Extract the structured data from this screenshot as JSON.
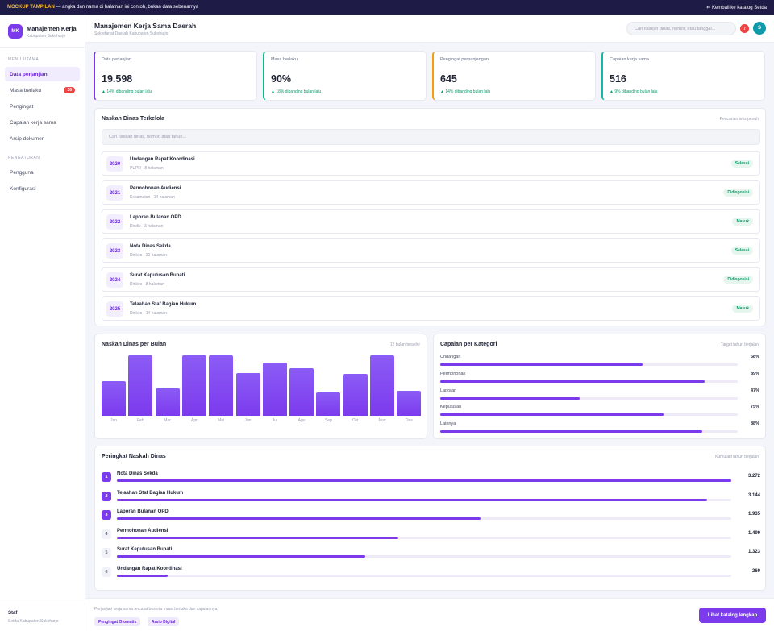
{
  "topbar": {
    "mock_label": "MOCKUP TAMPILAN",
    "note": " — angka dan nama di halaman ini contoh, bukan data sebenarnya",
    "back_link": "⇐ Kembali ke katalog Setda"
  },
  "brand": {
    "logo": "MK",
    "title": "Manajemen Kerja",
    "subtitle": "Kabupaten Sukoharjo"
  },
  "sidebar": {
    "sec_main": "MENU UTAMA",
    "items": [
      {
        "label": "Data perjanjian"
      },
      {
        "label": "Masa berlaku",
        "badge": "36"
      },
      {
        "label": "Pengingat"
      },
      {
        "label": "Capaian kerja sama"
      },
      {
        "label": "Arsip dokumen"
      }
    ],
    "sec_settings": "PENGATURAN",
    "settings": [
      {
        "label": "Pengguna"
      },
      {
        "label": "Konfigurasi"
      }
    ],
    "user_name": "Staf",
    "user_role": "Setda Kabupaten Sukoharjo"
  },
  "header": {
    "title": "Manajemen Kerja Sama Daerah",
    "subtitle": "Sekretariat Daerah Kabupaten Sukoharjo",
    "search_placeholder": "Cari naskah dinas, nomor, atau tanggal...",
    "notif_count": "7",
    "avatar": "S"
  },
  "stats": [
    {
      "label": "Data perjanjian",
      "value": "19.598",
      "change": "▲ 14% dibanding bulan lalu",
      "accent": "#7c3aed"
    },
    {
      "label": "Masa berlaku",
      "value": "90%",
      "change": "▲ 18% dibanding bulan lalu",
      "accent": "#10b981"
    },
    {
      "label": "Pengingat perpanjangan",
      "value": "645",
      "change": "▲ 14% dibanding bulan lalu",
      "accent": "#f59e0b"
    },
    {
      "label": "Capaian kerja sama",
      "value": "516",
      "change": "▲ 9% dibanding bulan lalu",
      "accent": "#14b8a6"
    }
  ],
  "documents": {
    "title": "Naskah Dinas Terkelola",
    "hint": "Pencarian teks penuh",
    "search_placeholder": "Cari naskah dinas, nomor, atau tahun...",
    "rows": [
      {
        "year": "2020",
        "title": "Undangan Rapat Koordinasi",
        "meta": "PUPR · 8 halaman",
        "status": "Selesai"
      },
      {
        "year": "2021",
        "title": "Permohonan Audiensi",
        "meta": "Kecamatan · 14 halaman",
        "status": "Didisposisi"
      },
      {
        "year": "2022",
        "title": "Laporan Bulanan OPD",
        "meta": "Disdik · 3 halaman",
        "status": "Masuk"
      },
      {
        "year": "2023",
        "title": "Nota Dinas Sekda",
        "meta": "Dinkes · 32 halaman",
        "status": "Selesai"
      },
      {
        "year": "2024",
        "title": "Surat Keputusan Bupati",
        "meta": "Dinkes · 8 halaman",
        "status": "Didisposisi"
      },
      {
        "year": "2025",
        "title": "Telaahan Staf Bagian Hukum",
        "meta": "Dinkes · 14 halaman",
        "status": "Masuk"
      }
    ]
  },
  "monthly": {
    "title": "Naskah Dinas per Bulan",
    "hint": "12 bulan terakhir"
  },
  "categories": {
    "title": "Capaian per Kategori",
    "hint": "Target tahun berjalan",
    "items": [
      {
        "label": "Undangan",
        "value": "68%",
        "pct": 68
      },
      {
        "label": "Permohonan",
        "value": "89%",
        "pct": 89
      },
      {
        "label": "Laporan",
        "value": "47%",
        "pct": 47
      },
      {
        "label": "Keputusan",
        "value": "75%",
        "pct": 75
      },
      {
        "label": "Lainnya",
        "value": "88%",
        "pct": 88
      }
    ]
  },
  "ranking": {
    "title": "Peringkat Naskah Dinas",
    "hint": "Kumulatif tahun berjalan",
    "items": [
      {
        "rank": "1",
        "name": "Nota Dinas Sekda",
        "value": "3.272",
        "n": 3272
      },
      {
        "rank": "2",
        "name": "Telaahan Staf Bagian Hukum",
        "value": "3.144",
        "n": 3144
      },
      {
        "rank": "3",
        "name": "Laporan Bulanan OPD",
        "value": "1.935",
        "n": 1935
      },
      {
        "rank": "4",
        "name": "Permohonan Audiensi",
        "value": "1.499",
        "n": 1499
      },
      {
        "rank": "5",
        "name": "Surat Keputusan Bupati",
        "value": "1.323",
        "n": 1323
      },
      {
        "rank": "6",
        "name": "Undangan Rapat Koordinasi",
        "value": "269",
        "n": 269
      }
    ]
  },
  "footer": {
    "text": "Perjanjian kerja sama tercatat beserta masa berlaku dan capaiannya.",
    "chips": [
      "Pengingat Otomatis",
      "Arsip Digital"
    ],
    "cta": "Lihat katalog lengkap"
  },
  "chart_data": {
    "type": "bar",
    "title": "Naskah Dinas per Bulan",
    "categories": [
      "Jan",
      "Feb",
      "Mar",
      "Apr",
      "Mei",
      "Jun",
      "Jul",
      "Agu",
      "Sep",
      "Okt",
      "Nov",
      "Des"
    ],
    "values": [
      58,
      100,
      45,
      100,
      100,
      71,
      88,
      79,
      39,
      69,
      100,
      41
    ],
    "ylim": [
      0,
      100
    ]
  }
}
